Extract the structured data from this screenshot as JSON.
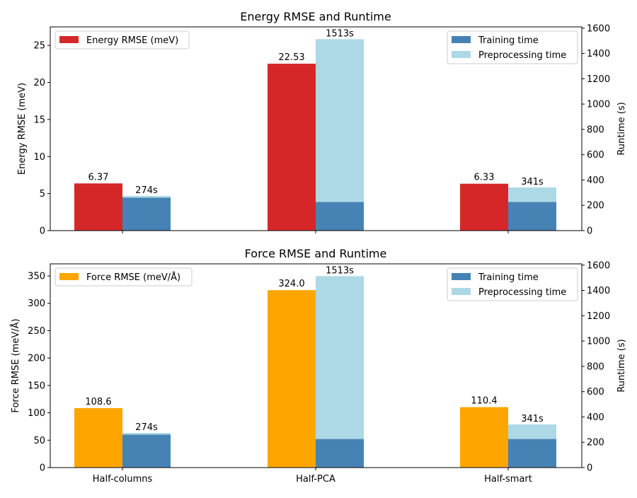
{
  "colors": {
    "energy": "#d62728",
    "force": "#ffa500",
    "training": "#4682b4",
    "preprocessing": "#add8e6"
  },
  "chart_data": [
    {
      "type": "bar",
      "title": "Energy RMSE and Runtime",
      "categories": [
        "Half-columns",
        "Half-PCA",
        "Half-smart"
      ],
      "show_xticklabels": false,
      "left_axis": {
        "label": "Energy RMSE (meV)",
        "ylim": [
          0,
          27.5
        ],
        "ticks": [
          0,
          5,
          10,
          15,
          20,
          25
        ],
        "tick_labels": [
          "0",
          "5",
          "10",
          "15",
          "20",
          "25"
        ]
      },
      "right_axis": {
        "label": "Runtime (s)",
        "ylim": [
          0,
          1610
        ],
        "ticks": [
          0,
          200,
          400,
          600,
          800,
          1000,
          1200,
          1400,
          1600
        ],
        "tick_labels": [
          "0",
          "200",
          "400",
          "600",
          "800",
          "1000",
          "1200",
          "1400",
          "1600"
        ]
      },
      "series": [
        {
          "name": "Energy RMSE (meV)",
          "axis": "left",
          "values": [
            6.37,
            22.53,
            6.33
          ],
          "labels": [
            "6.37",
            "22.53",
            "6.33"
          ]
        },
        {
          "name": "Training time",
          "axis": "right",
          "values": [
            260,
            226,
            226
          ]
        },
        {
          "name": "Preprocessing time",
          "axis": "right",
          "values": [
            14,
            1287,
            115
          ]
        }
      ],
      "total_labels": [
        "274s",
        "1513s",
        "341s"
      ],
      "legend_left": {
        "position": "upper-left",
        "entries": [
          "Energy RMSE (meV)"
        ]
      },
      "legend_right": {
        "position": "upper-right",
        "entries": [
          "Training time",
          "Preprocessing time"
        ]
      }
    },
    {
      "type": "bar",
      "title": "Force RMSE and Runtime",
      "categories": [
        "Half-columns",
        "Half-PCA",
        "Half-smart"
      ],
      "show_xticklabels": true,
      "left_axis": {
        "label": "Force RMSE (meV/Å)",
        "ylim": [
          0,
          372
        ],
        "ticks": [
          0,
          50,
          100,
          150,
          200,
          250,
          300,
          350
        ],
        "tick_labels": [
          "0",
          "50",
          "100",
          "150",
          "200",
          "250",
          "300",
          "350"
        ]
      },
      "right_axis": {
        "label": "Runtime (s)",
        "ylim": [
          0,
          1610
        ],
        "ticks": [
          0,
          200,
          400,
          600,
          800,
          1000,
          1200,
          1400,
          1600
        ],
        "tick_labels": [
          "0",
          "200",
          "400",
          "600",
          "800",
          "1000",
          "1200",
          "1400",
          "1600"
        ]
      },
      "series": [
        {
          "name": "Force RMSE (meV/Å)",
          "axis": "left",
          "values": [
            108.6,
            324.0,
            110.4
          ],
          "labels": [
            "108.6",
            "324.0",
            "110.4"
          ]
        },
        {
          "name": "Training time",
          "axis": "right",
          "values": [
            260,
            226,
            226
          ]
        },
        {
          "name": "Preprocessing time",
          "axis": "right",
          "values": [
            14,
            1287,
            115
          ]
        }
      ],
      "total_labels": [
        "274s",
        "1513s",
        "341s"
      ],
      "legend_left": {
        "position": "upper-left",
        "entries": [
          "Force RMSE (meV/Å)"
        ]
      },
      "legend_right": {
        "position": "upper-right",
        "entries": [
          "Training time",
          "Preprocessing time"
        ]
      }
    }
  ]
}
